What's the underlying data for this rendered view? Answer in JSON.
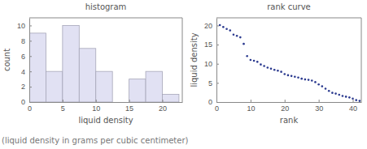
{
  "chart_data": [
    {
      "type": "histogram",
      "title": "histogram",
      "x_label": "liquid density",
      "y_label": "count",
      "bins": [
        0,
        2.5,
        5,
        7.5,
        10,
        12.5,
        15,
        17.5,
        20,
        22.5
      ],
      "values": [
        9,
        4,
        10,
        7,
        4,
        0,
        3,
        4,
        1
      ],
      "color": "#e1e1f3",
      "xlim": [
        0,
        23
      ],
      "xticks": [
        0,
        5,
        10,
        15,
        20
      ],
      "ylim": [
        0,
        11
      ],
      "yticks": [
        0,
        2,
        4,
        6,
        8,
        10
      ]
    },
    {
      "type": "scatter",
      "title": "rank curve",
      "x_label": "rank",
      "y_label": "liquid density",
      "x": [
        1,
        2,
        3,
        4,
        5,
        6,
        7,
        8,
        9,
        10,
        11,
        12,
        13,
        14,
        15,
        16,
        17,
        18,
        19,
        20,
        21,
        22,
        23,
        24,
        25,
        26,
        27,
        28,
        29,
        30,
        31,
        32,
        33,
        34,
        35,
        36,
        37,
        38,
        39,
        40,
        41,
        42
      ],
      "values": [
        20.1,
        19.6,
        19.1,
        18.7,
        17.6,
        17.3,
        16.9,
        15.2,
        12.0,
        11.0,
        10.8,
        10.5,
        9.8,
        9.4,
        9.0,
        8.7,
        8.4,
        8.2,
        7.9,
        7.3,
        7.0,
        6.8,
        6.6,
        6.4,
        6.1,
        5.9,
        5.8,
        5.6,
        5.2,
        4.6,
        4.1,
        3.5,
        2.9,
        2.4,
        2.2,
        1.9,
        1.6,
        1.4,
        1.2,
        0.9,
        0.5,
        0.3
      ],
      "color": "#2b3a8f",
      "marker": "circle",
      "xlim": [
        0,
        42.5
      ],
      "xticks": [
        0,
        10,
        20,
        30,
        40
      ],
      "ylim": [
        0,
        22
      ],
      "yticks": [
        0,
        5,
        10,
        15,
        20
      ]
    }
  ],
  "caption": "(liquid density in grams per cubic centimeter)"
}
